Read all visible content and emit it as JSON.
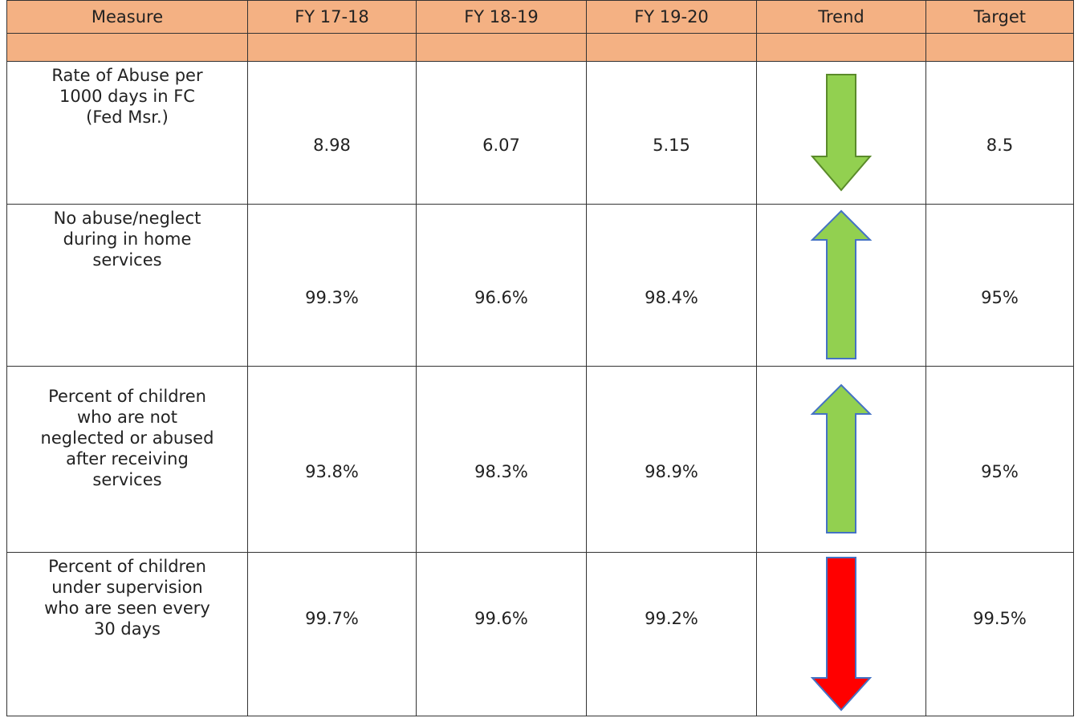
{
  "table": {
    "header": [
      "Measure",
      "FY 17-18",
      "FY 18-19",
      "FY 19-20",
      "Trend",
      "Target"
    ],
    "rows": [
      {
        "measure": "Rate of Abuse per 1000 days in FC (Fed Msr.)",
        "values": [
          "8.98",
          "6.07",
          "5.15"
        ],
        "target": "8.5"
      },
      {
        "measure": "No abuse/neglect during in home services",
        "values": [
          "99.3%",
          "96.6%",
          "98.4%"
        ],
        "target": "95%"
      },
      {
        "measure": "Percent of children who are not neglected or abused after receiving services",
        "values": [
          "93.8%",
          "98.3%",
          "98.9%"
        ],
        "target": "95%"
      },
      {
        "measure": "Percent of children under supervision who are seen every 30 days",
        "values": [
          "99.7%",
          "99.6%",
          "99.2%"
        ],
        "target": "99.5%"
      }
    ]
  }
}
